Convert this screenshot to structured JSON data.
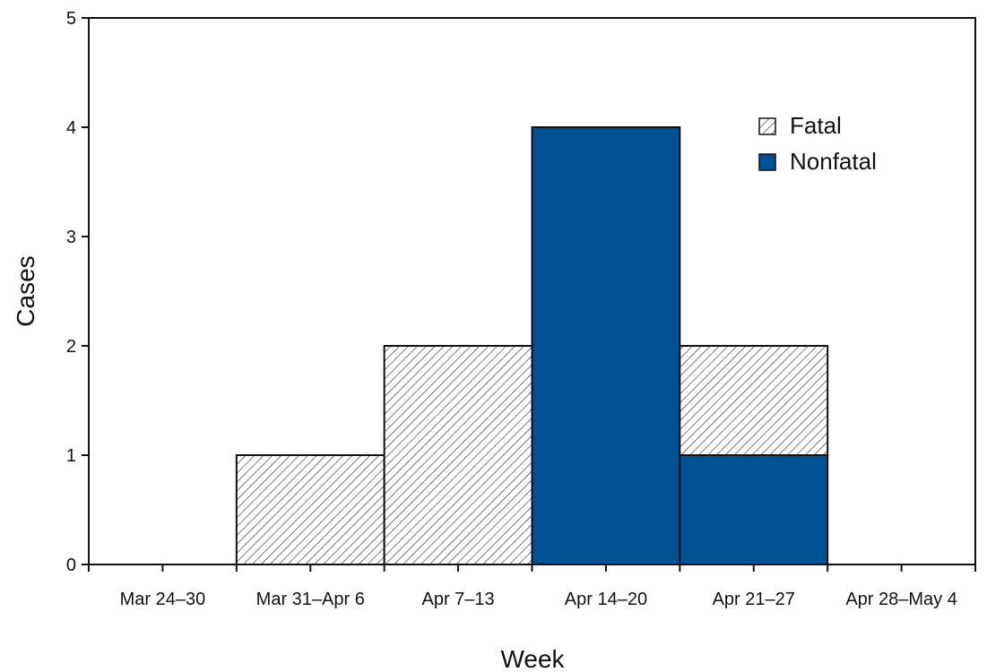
{
  "chart_data": {
    "type": "bar",
    "stacked": true,
    "categories": [
      "Mar 24–30",
      "Mar 31–Apr 6",
      "Apr 7–13",
      "Apr 14–20",
      "Apr 21–27",
      "Apr 28–May 4"
    ],
    "series": [
      {
        "name": "Nonfatal",
        "values": [
          0,
          0,
          0,
          4,
          1,
          0
        ],
        "fill": "solid",
        "color": "#005193"
      },
      {
        "name": "Fatal",
        "values": [
          0,
          1,
          2,
          0,
          1,
          0
        ],
        "fill": "hatched",
        "color": "#ffffff"
      }
    ],
    "xlabel": "Week",
    "ylabel": "Cases",
    "ylim": [
      0,
      5
    ],
    "yticks": [
      "0",
      "1",
      "2",
      "3",
      "4",
      "5"
    ],
    "grid": false,
    "legend_position": "top-right"
  }
}
